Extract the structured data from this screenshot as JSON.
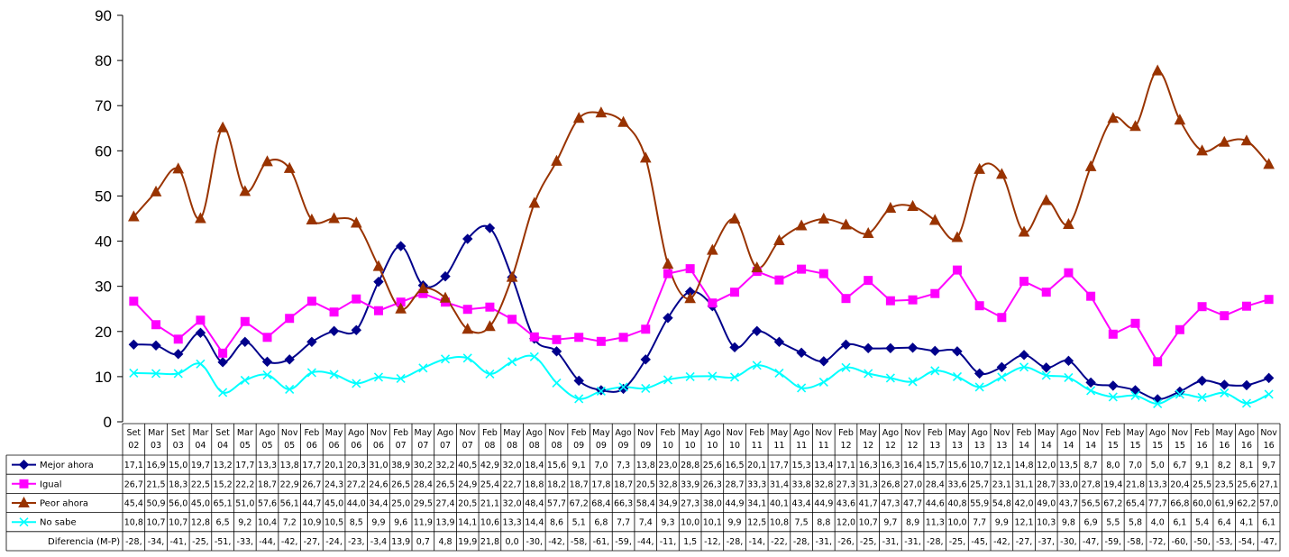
{
  "chart_data": {
    "type": "line",
    "ylim": [
      0,
      90
    ],
    "yticks": [
      0,
      10,
      20,
      30,
      40,
      50,
      60,
      70,
      80,
      90
    ],
    "grid": false,
    "legend": "table-bottom",
    "categories": [
      [
        "Set",
        "02"
      ],
      [
        "Mar",
        "03"
      ],
      [
        "Set",
        "03"
      ],
      [
        "Mar",
        "04"
      ],
      [
        "Set",
        "04"
      ],
      [
        "Mar",
        "05"
      ],
      [
        "Ago",
        "05"
      ],
      [
        "Nov",
        "05"
      ],
      [
        "Feb",
        "06"
      ],
      [
        "May",
        "06"
      ],
      [
        "Ago",
        "06"
      ],
      [
        "Nov",
        "06"
      ],
      [
        "Feb",
        "07"
      ],
      [
        "May",
        "07"
      ],
      [
        "Ago",
        "07"
      ],
      [
        "Nov",
        "07"
      ],
      [
        "Feb",
        "08"
      ],
      [
        "May",
        "08"
      ],
      [
        "Ago",
        "08"
      ],
      [
        "Nov",
        "08"
      ],
      [
        "Feb",
        "09"
      ],
      [
        "May",
        "09"
      ],
      [
        "Ago",
        "09"
      ],
      [
        "Nov",
        "09"
      ],
      [
        "Feb",
        "10"
      ],
      [
        "May",
        "10"
      ],
      [
        "Ago",
        "10"
      ],
      [
        "Nov",
        "10"
      ],
      [
        "Feb",
        "11"
      ],
      [
        "May",
        "11"
      ],
      [
        "Ago",
        "11"
      ],
      [
        "Nov",
        "11"
      ],
      [
        "Feb",
        "12"
      ],
      [
        "May",
        "12"
      ],
      [
        "Ago",
        "12"
      ],
      [
        "Nov",
        "12"
      ],
      [
        "Feb",
        "13"
      ],
      [
        "May",
        "13"
      ],
      [
        "Ago",
        "13"
      ],
      [
        "Nov",
        "13"
      ],
      [
        "Feb",
        "14"
      ],
      [
        "May",
        "14"
      ],
      [
        "Ago",
        "14"
      ],
      [
        "Nov",
        "14"
      ],
      [
        "Feb",
        "15"
      ],
      [
        "May",
        "15"
      ],
      [
        "Ago",
        "15"
      ],
      [
        "Nov",
        "15"
      ],
      [
        "Feb",
        "16"
      ],
      [
        "May",
        "16"
      ],
      [
        "Ago",
        "16"
      ],
      [
        "Nov",
        "16"
      ]
    ],
    "series": [
      {
        "name": "Mejor ahora",
        "color": "#00008B",
        "marker": "diamond",
        "values": [
          17.1,
          16.9,
          15.0,
          19.7,
          13.2,
          17.7,
          13.3,
          13.8,
          17.7,
          20.1,
          20.3,
          31.0,
          38.9,
          30.2,
          32.2,
          40.5,
          42.9,
          32.0,
          18.4,
          15.6,
          9.1,
          7.0,
          7.3,
          13.8,
          23.0,
          28.8,
          25.6,
          16.5,
          20.1,
          17.7,
          15.3,
          13.4,
          17.1,
          16.3,
          16.3,
          16.4,
          15.7,
          15.6,
          10.7,
          12.1,
          14.8,
          12.0,
          13.5,
          8.7,
          8.0,
          7.0,
          5.0,
          6.7,
          9.1,
          8.2,
          8.1,
          9.7
        ],
        "labels": [
          "17,1",
          "16,9",
          "15,0",
          "19,7",
          "13,2",
          "17,7",
          "13,3",
          "13,8",
          "17,7",
          "20,1",
          "20,3",
          "31,0",
          "38,9",
          "30,2",
          "32,2",
          "40,5",
          "42,9",
          "32,0",
          "18,4",
          "15,6",
          "9,1",
          "7,0",
          "7,3",
          "13,8",
          "23,0",
          "28,8",
          "25,6",
          "16,5",
          "20,1",
          "17,7",
          "15,3",
          "13,4",
          "17,1",
          "16,3",
          "16,3",
          "16,4",
          "15,7",
          "15,6",
          "10,7",
          "12,1",
          "14,8",
          "12,0",
          "13,5",
          "8,7",
          "8,0",
          "7,0",
          "5,0",
          "6,7",
          "9,1",
          "8,2",
          "8,1",
          "9,7"
        ]
      },
      {
        "name": "Igual",
        "color": "#FF00FF",
        "marker": "square",
        "values": [
          26.7,
          21.5,
          18.3,
          22.5,
          15.2,
          22.2,
          18.7,
          22.9,
          26.7,
          24.3,
          27.2,
          24.6,
          26.5,
          28.4,
          26.5,
          24.9,
          25.4,
          22.7,
          18.8,
          18.2,
          18.7,
          17.8,
          18.7,
          20.5,
          32.8,
          33.9,
          26.3,
          28.7,
          33.3,
          31.4,
          33.8,
          32.8,
          27.3,
          31.3,
          26.8,
          27.0,
          28.4,
          33.6,
          25.7,
          23.1,
          31.1,
          28.7,
          33.0,
          27.8,
          19.4,
          21.8,
          13.3,
          20.4,
          25.5,
          23.5,
          25.6,
          27.1
        ],
        "labels": [
          "26,7",
          "21,5",
          "18,3",
          "22,5",
          "15,2",
          "22,2",
          "18,7",
          "22,9",
          "26,7",
          "24,3",
          "27,2",
          "24,6",
          "26,5",
          "28,4",
          "26,5",
          "24,9",
          "25,4",
          "22,7",
          "18,8",
          "18,2",
          "18,7",
          "17,8",
          "18,7",
          "20,5",
          "32,8",
          "33,9",
          "26,3",
          "28,7",
          "33,3",
          "31,4",
          "33,8",
          "32,8",
          "27,3",
          "31,3",
          "26,8",
          "27,0",
          "28,4",
          "33,6",
          "25,7",
          "23,1",
          "31,1",
          "28,7",
          "33,0",
          "27,8",
          "19,4",
          "21,8",
          "13,3",
          "20,4",
          "25,5",
          "23,5",
          "25,6",
          "27,1"
        ]
      },
      {
        "name": "Peor ahora",
        "color": "#993300",
        "marker": "triangle",
        "values": [
          45.4,
          50.9,
          56.0,
          45.0,
          65.1,
          51.0,
          57.6,
          56.1,
          44.7,
          45.0,
          44.0,
          34.4,
          25.0,
          29.5,
          27.4,
          20.5,
          21.1,
          32.0,
          48.4,
          57.7,
          67.2,
          68.4,
          66.3,
          58.4,
          34.9,
          27.3,
          38.0,
          44.9,
          34.1,
          40.1,
          43.4,
          44.9,
          43.6,
          41.7,
          47.3,
          47.7,
          44.6,
          40.8,
          55.9,
          54.8,
          42.0,
          49.0,
          43.7,
          56.5,
          67.2,
          65.4,
          77.7,
          66.8,
          60.0,
          61.9,
          62.2,
          57.0
        ],
        "labels": [
          "45,4",
          "50,9",
          "56,0",
          "45,0",
          "65,1",
          "51,0",
          "57,6",
          "56,1",
          "44,7",
          "45,0",
          "44,0",
          "34,4",
          "25,0",
          "29,5",
          "27,4",
          "20,5",
          "21,1",
          "32,0",
          "48,4",
          "57,7",
          "67,2",
          "68,4",
          "66,3",
          "58,4",
          "34,9",
          "27,3",
          "38,0",
          "44,9",
          "34,1",
          "40,1",
          "43,4",
          "44,9",
          "43,6",
          "41,7",
          "47,3",
          "47,7",
          "44,6",
          "40,8",
          "55,9",
          "54,8",
          "42,0",
          "49,0",
          "43,7",
          "56,5",
          "67,2",
          "65,4",
          "77,7",
          "66,8",
          "60,0",
          "61,9",
          "62,2",
          "57,0"
        ]
      },
      {
        "name": "No sabe",
        "color": "#00FFFF",
        "marker": "cross",
        "values": [
          10.8,
          10.7,
          10.7,
          12.8,
          6.5,
          9.2,
          10.4,
          7.2,
          10.9,
          10.5,
          8.5,
          9.9,
          9.6,
          11.9,
          13.9,
          14.1,
          10.6,
          13.3,
          14.4,
          8.6,
          5.1,
          6.8,
          7.7,
          7.4,
          9.3,
          10.0,
          10.1,
          9.9,
          12.5,
          10.8,
          7.5,
          8.8,
          12.0,
          10.7,
          9.7,
          8.9,
          11.3,
          10.0,
          7.7,
          9.9,
          12.1,
          10.3,
          9.8,
          6.9,
          5.5,
          5.8,
          4.0,
          6.1,
          5.4,
          6.4,
          4.1,
          6.1
        ],
        "labels": [
          "10,8",
          "10,7",
          "10,7",
          "12,8",
          "6,5",
          "9,2",
          "10,4",
          "7,2",
          "10,9",
          "10,5",
          "8,5",
          "9,9",
          "9,6",
          "11,9",
          "13,9",
          "14,1",
          "10,6",
          "13,3",
          "14,4",
          "8,6",
          "5,1",
          "6,8",
          "7,7",
          "7,4",
          "9,3",
          "10,0",
          "10,1",
          "9,9",
          "12,5",
          "10,8",
          "7,5",
          "8,8",
          "12,0",
          "10,7",
          "9,7",
          "8,9",
          "11,3",
          "10,0",
          "7,7",
          "9,9",
          "12,1",
          "10,3",
          "9,8",
          "6,9",
          "5,5",
          "5,8",
          "4,0",
          "6,1",
          "5,4",
          "6,4",
          "4,1",
          "6,1"
        ]
      }
    ],
    "extra_row": {
      "name": "Diferencia (M-P)",
      "labels": [
        "-28,",
        "-34,",
        "-41,",
        "-25,",
        "-51,",
        "-33,",
        "-44,",
        "-42,",
        "-27,",
        "-24,",
        "-23,",
        "-3,4",
        "13,9",
        "0,7",
        "4,8",
        "19,9",
        "21,8",
        "0,0",
        "-30,",
        "-42,",
        "-58,",
        "-61,",
        "-59,",
        "-44,",
        "-11,",
        "1,5",
        "-12,",
        "-28,",
        "-14,",
        "-22,",
        "-28,",
        "-31,",
        "-26,",
        "-25,",
        "-31,",
        "-31,",
        "-28,",
        "-25,",
        "-45,",
        "-42,",
        "-27,",
        "-37,",
        "-30,",
        "-47,",
        "-59,",
        "-58,",
        "-72,",
        "-60,",
        "-50,",
        "-53,",
        "-54,",
        "-47,"
      ]
    }
  }
}
